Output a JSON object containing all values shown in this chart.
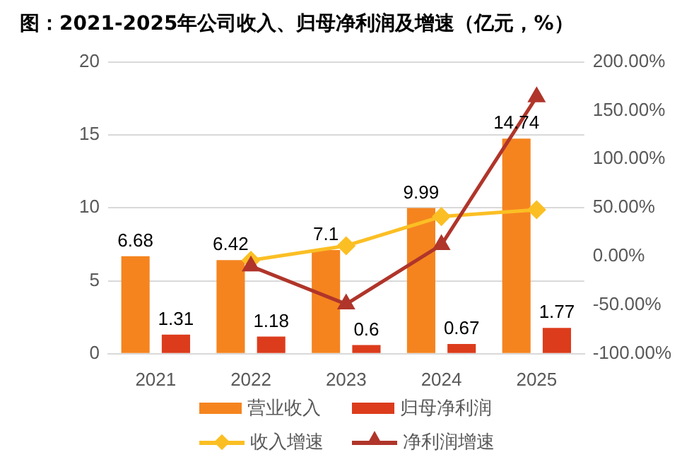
{
  "chart_data": {
    "type": "bar",
    "title": "图：2021-2025年公司收入、归母净利润及增速（亿元，%）",
    "categories": [
      "2021",
      "2022",
      "2023",
      "2024",
      "2025"
    ],
    "series": [
      {
        "name": "营业收入",
        "color": "#f5841f",
        "values": [
          6.68,
          6.42,
          7.1,
          9.99,
          14.74
        ],
        "value_labels": [
          "6.68",
          "6.42",
          "7.1",
          "9.99",
          "14.74"
        ]
      },
      {
        "name": "归母净利润",
        "color": "#dc3c1c",
        "values": [
          1.31,
          1.18,
          0.6,
          0.67,
          1.77
        ],
        "value_labels": [
          "1.31",
          "1.18",
          "0.6",
          "0.67",
          "1.77"
        ]
      },
      {
        "name": "收入增速",
        "type": "line",
        "axis": "y2",
        "marker": "diamond",
        "color": "#fbbf24",
        "values": [
          null,
          -4,
          11,
          41,
          48
        ]
      },
      {
        "name": "净利润增速",
        "type": "line",
        "axis": "y2",
        "marker": "triangle",
        "color": "#b0352a",
        "values": [
          null,
          -10,
          -49,
          12,
          164
        ]
      }
    ],
    "ylim": [
      0,
      20
    ],
    "yticks": [
      0,
      5,
      10,
      15,
      20
    ],
    "y2lim": [
      -100,
      200
    ],
    "y2ticks": [
      {
        "value": -100,
        "label": "-100.00%"
      },
      {
        "value": -50,
        "label": "-50.00%"
      },
      {
        "value": 0,
        "label": "0.00%"
      },
      {
        "value": 50,
        "label": "50.00%"
      },
      {
        "value": 100,
        "label": "100.00%"
      },
      {
        "value": 150,
        "label": "150.00%"
      },
      {
        "value": 200,
        "label": "200.00%"
      }
    ],
    "grid": "y",
    "legend": "bottom"
  }
}
